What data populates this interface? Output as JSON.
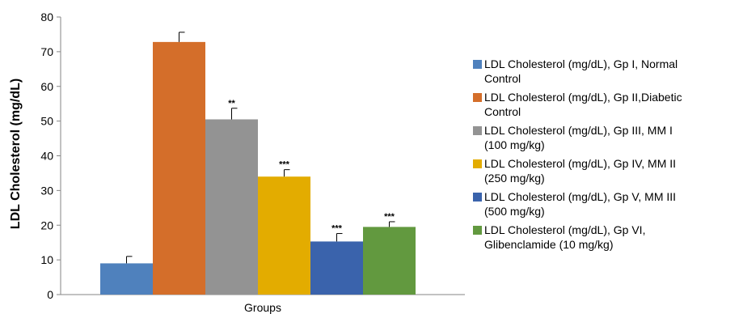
{
  "chart_data": {
    "type": "bar",
    "xlabel": "Groups",
    "ylabel": "LDL Cholesterol (mg/dL)",
    "ylim": [
      0,
      80
    ],
    "yticks": [
      0,
      10,
      20,
      30,
      40,
      50,
      60,
      70,
      80
    ],
    "grid": false,
    "legend_position": "right",
    "series": [
      {
        "name": "LDL Cholesterol (mg/dL), Gp I, Normal Control",
        "value": 9,
        "error": 2,
        "significance": "",
        "color": "#4f81bd"
      },
      {
        "name": "LDL Cholesterol (mg/dL), Gp II,Diabetic Control",
        "value": 72.8,
        "error": 2.8,
        "significance": "",
        "color": "#d46e2a"
      },
      {
        "name": "LDL Cholesterol (mg/dL), Gp III, MM I (100 mg/kg)",
        "value": 50.5,
        "error": 3.2,
        "significance": "**",
        "color": "#939393"
      },
      {
        "name": "LDL Cholesterol (mg/dL), Gp IV, MM II (250 mg/kg)",
        "value": 34,
        "error": 2,
        "significance": "***",
        "color": "#e3ac00"
      },
      {
        "name": "LDL Cholesterol (mg/dL), Gp V, MM III (500 mg/kg)",
        "value": 15.3,
        "error": 2.3,
        "significance": "***",
        "color": "#3a63ac"
      },
      {
        "name": "LDL Cholesterol (mg/dL), Gp VI, Glibenclamide (10 mg/kg)",
        "value": 19.5,
        "error": 1.5,
        "significance": "***",
        "color": "#62993f"
      }
    ]
  }
}
